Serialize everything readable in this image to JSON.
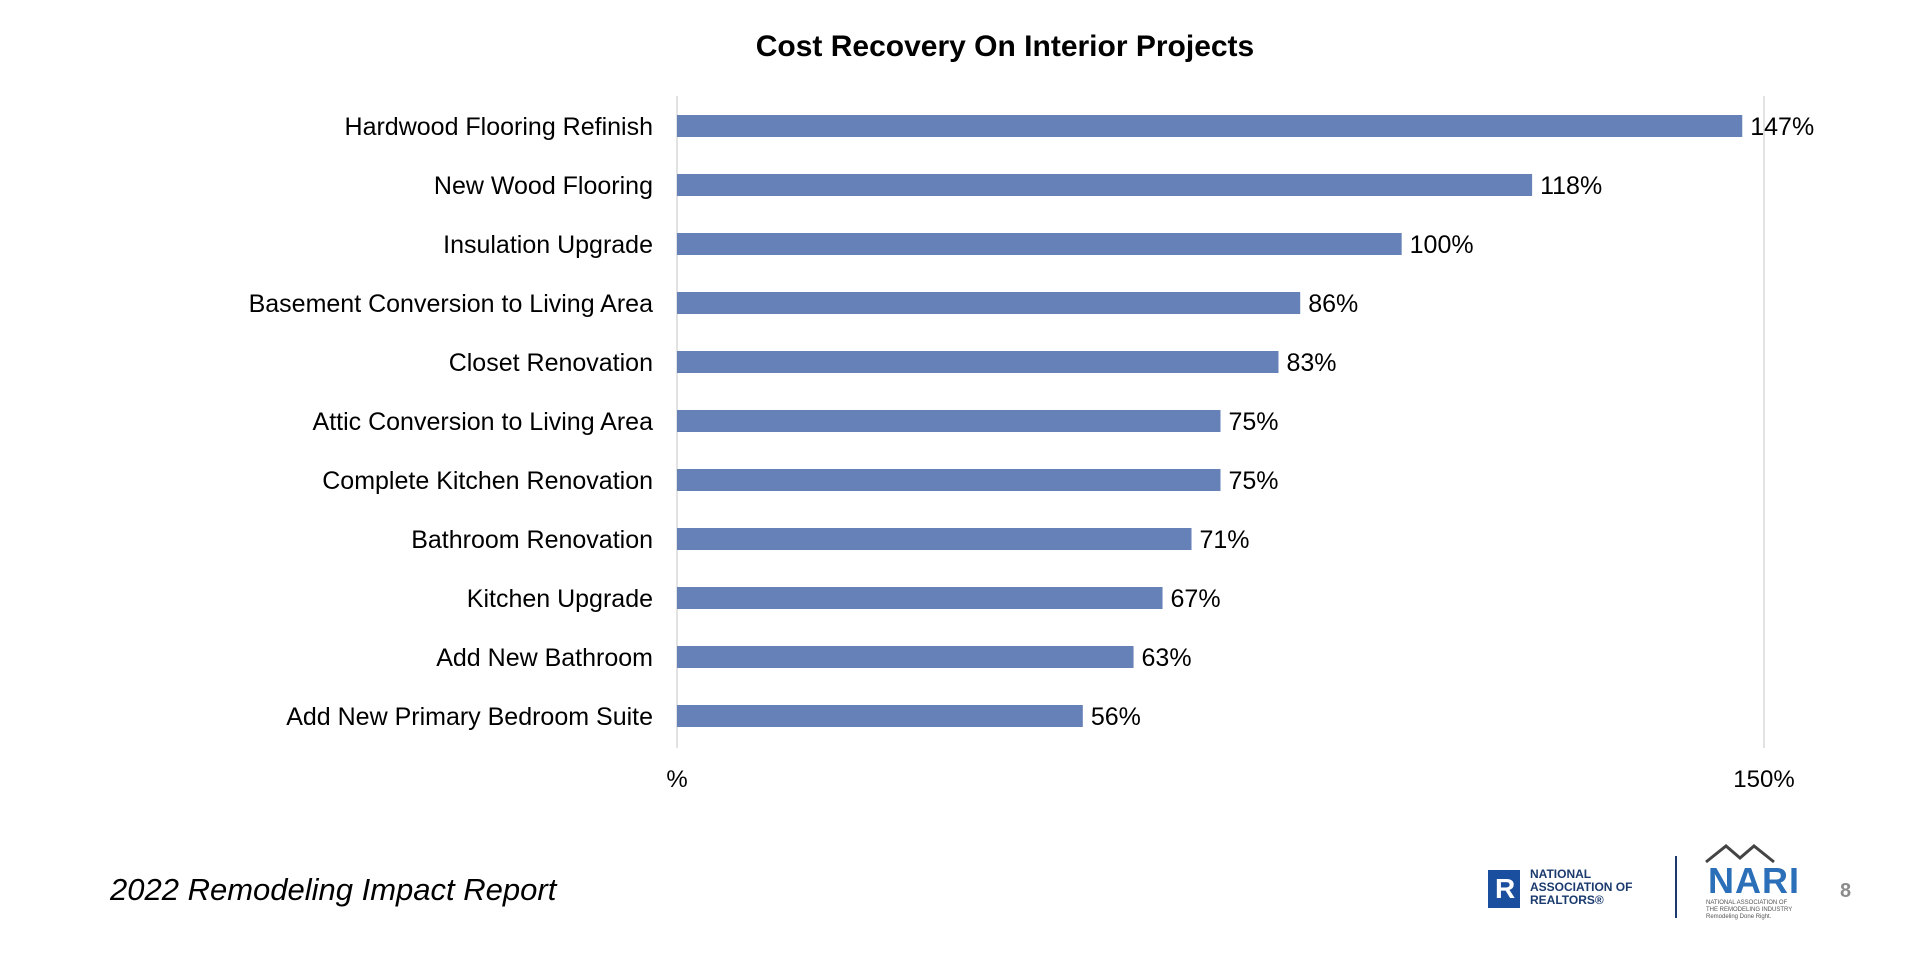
{
  "chart_data": {
    "type": "bar",
    "orientation": "horizontal",
    "title": "Cost Recovery On Interior Projects",
    "categories": [
      "Hardwood Flooring Refinish",
      "New Wood Flooring",
      "Insulation Upgrade",
      "Basement Conversion to Living Area",
      "Closet Renovation",
      "Attic Conversion to Living Area",
      "Complete Kitchen Renovation",
      "Bathroom Renovation",
      "Kitchen Upgrade",
      "Add New Bathroom",
      "Add New Primary Bedroom Suite"
    ],
    "values": [
      147,
      118,
      100,
      86,
      83,
      75,
      75,
      71,
      67,
      63,
      56
    ],
    "value_labels": [
      "147%",
      "118%",
      "100%",
      "86%",
      "83%",
      "75%",
      "75%",
      "71%",
      "67%",
      "63%",
      "56%"
    ],
    "xlim": [
      0,
      150
    ],
    "tick_labels": [
      "%",
      "150%"
    ],
    "grid": "vertical gridline at 150%",
    "bar_color": "#6680b8",
    "legend": "none"
  },
  "footer": {
    "report_title": "2022 Remodeling Impact Report",
    "page_number": "8",
    "realtors_logo_text": "NATIONAL\nASSOCIATION OF\nREALTORS®",
    "nari_logo_text": "NARI",
    "nari_logo_subtext": "NATIONAL ASSOCIATION OF\nTHE REMODELING INDUSTRY\nRemodeling Done Right."
  }
}
